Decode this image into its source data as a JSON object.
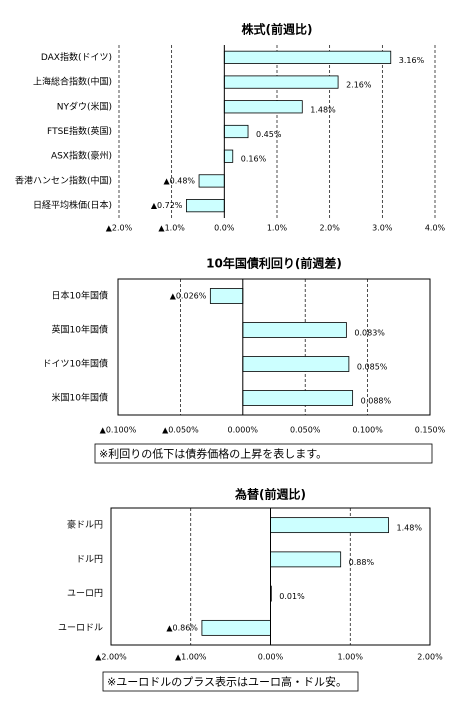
{
  "chart_data": [
    {
      "type": "bar",
      "orientation": "horizontal",
      "title": "株式(前週比)",
      "categories": [
        "DAX指数(ドイツ)",
        "上海総合指数(中国)",
        "NYダウ(米国)",
        "FTSE指数(英国)",
        "ASX指数(豪州)",
        "香港ハンセン指数(中国)",
        "日経平均株価(日本)"
      ],
      "values": [
        3.16,
        2.16,
        1.48,
        0.45,
        0.16,
        -0.48,
        -0.72
      ],
      "value_labels": [
        "3.16%",
        "2.16%",
        "1.48%",
        "0.45%",
        "0.16%",
        "▲0.48%",
        "▲0.72%"
      ],
      "color": "#ccffff",
      "negative_color": "#ff0000",
      "xlim": [
        -2,
        4
      ],
      "xticks": [
        {
          "value": -2,
          "label": "▲2.0%"
        },
        {
          "value": -1,
          "label": "▲1.0%"
        },
        {
          "value": 0,
          "label": "0.0%"
        },
        {
          "value": 1,
          "label": "1.0%"
        },
        {
          "value": 2,
          "label": "2.0%"
        },
        {
          "value": 3,
          "label": "3.0%"
        },
        {
          "value": 4,
          "label": "4.0%"
        }
      ],
      "grid": true
    },
    {
      "type": "bar",
      "orientation": "horizontal",
      "title": "10年国債利回り(前週差)",
      "categories": [
        "日本10年国債",
        "英国10年国債",
        "ドイツ10年国債",
        "米国10年国債"
      ],
      "values": [
        -0.026,
        0.083,
        0.085,
        0.088
      ],
      "value_labels": [
        "▲0.026%",
        "0.083%",
        "0.085%",
        "0.088%"
      ],
      "color": "#ccffff",
      "negative_color": "#ff0000",
      "xlim": [
        -0.1,
        0.15
      ],
      "xticks": [
        {
          "value": -0.1,
          "label": "▲0.100%"
        },
        {
          "value": -0.05,
          "label": "▲0.050%"
        },
        {
          "value": 0,
          "label": "0.000%"
        },
        {
          "value": 0.05,
          "label": "0.050%"
        },
        {
          "value": 0.1,
          "label": "0.100%"
        },
        {
          "value": 0.15,
          "label": "0.150%"
        }
      ],
      "grid": true,
      "note": "※利回りの低下は債券価格の上昇を表します。"
    },
    {
      "type": "bar",
      "orientation": "horizontal",
      "title": "為替(前週比)",
      "categories": [
        "豪ドル円",
        "ドル円",
        "ユーロ円",
        "ユーロドル"
      ],
      "values": [
        1.48,
        0.88,
        0.01,
        -0.86
      ],
      "value_labels": [
        "1.48%",
        "0.88%",
        "0.01%",
        "▲0.86%"
      ],
      "color": "#ccffff",
      "negative_color": "#ff0000",
      "xlim": [
        -2,
        2
      ],
      "xticks": [
        {
          "value": -2,
          "label": "▲2.00%"
        },
        {
          "value": -1,
          "label": "▲1.00%"
        },
        {
          "value": 0,
          "label": "0.00%"
        },
        {
          "value": 1,
          "label": "1.00%"
        },
        {
          "value": 2,
          "label": "2.00%"
        }
      ],
      "grid": true,
      "note": "※ユーロドルのプラス表示はユーロ高・ドル安。"
    }
  ]
}
